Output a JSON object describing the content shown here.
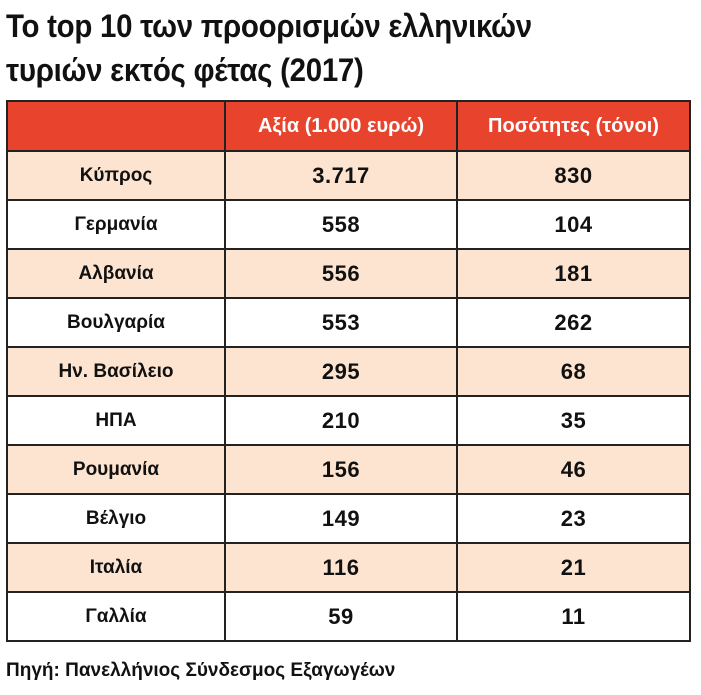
{
  "title": {
    "line1": "Το top 10 των προορισμών ελληνικών",
    "line2": "τυριών εκτός φέτας (2017)"
  },
  "table": {
    "headers": [
      "",
      "Αξία (1.000 ευρώ)",
      "Ποσότητες (τόνοι)"
    ],
    "rows": [
      {
        "country": "Κύπρος",
        "value": "3.717",
        "quantity": "830"
      },
      {
        "country": "Γερμανία",
        "value": "558",
        "quantity": "104"
      },
      {
        "country": "Αλβανία",
        "value": "556",
        "quantity": "181"
      },
      {
        "country": "Βουλγαρία",
        "value": "553",
        "quantity": "262"
      },
      {
        "country": "Ην. Βασίλειο",
        "value": "295",
        "quantity": "68"
      },
      {
        "country": "ΗΠΑ",
        "value": "210",
        "quantity": "35"
      },
      {
        "country": "Ρουμανία",
        "value": "156",
        "quantity": "46"
      },
      {
        "country": "Βέλγιο",
        "value": "149",
        "quantity": "23"
      },
      {
        "country": "Ιταλία",
        "value": "116",
        "quantity": "21"
      },
      {
        "country": "Γαλλία",
        "value": "59",
        "quantity": "11"
      }
    ]
  },
  "source": "Πηγή: Πανελλήνιος Σύνδεσμος Εξαγωγέων",
  "colors": {
    "header_bg": "#e8432d",
    "shaded_row_bg": "#fde4d0",
    "border": "#222222"
  }
}
